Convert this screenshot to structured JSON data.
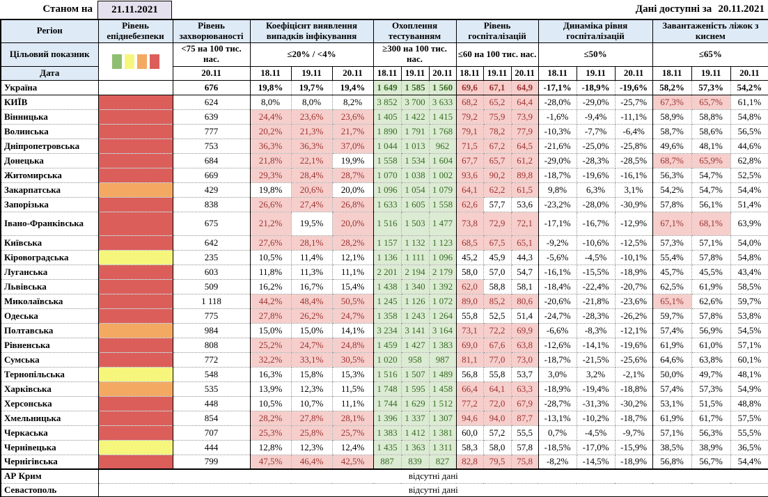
{
  "meta": {
    "as_of_label": "Станом на",
    "as_of_date": "21.11.2021",
    "available_label": "Дані доступні за",
    "available_date": "20.11.2021"
  },
  "colors": {
    "header_blue": "#DEEAF6",
    "date_box_lavender": "#E5E0ED",
    "alert_pink_bg": "#F6CECB",
    "alert_red_text": "#9C3332",
    "ok_green_bg": "#DCEBD3",
    "ok_green_text": "#356B22",
    "danger_red": "#DC5E5A",
    "danger_orange": "#F4A963",
    "danger_yellow": "#F6F67D"
  },
  "header": {
    "region": "Регіон",
    "target_row_label": "Цільовий показник",
    "date_row_label": "Дата",
    "legend_colors": [
      "#8FBE70",
      "#F6F67D",
      "#F4A963",
      "#DC5E5A"
    ],
    "groups": [
      {
        "title": "Рівень епіднебезпеки",
        "target": "",
        "dates": []
      },
      {
        "title": "Рівень захворюваності",
        "target": "<75 на 100 тис. нас.",
        "dates": [
          "20.11"
        ]
      },
      {
        "title": "Коефіцієнт виявлення випадків інфікування",
        "target": "≤20% / <4%",
        "dates": [
          "18.11",
          "19.11",
          "20.11"
        ]
      },
      {
        "title": "Охоплення тестуванням",
        "target": "≥300 на 100 тис. нас.",
        "dates": [
          "18.11",
          "19.11",
          "20.11"
        ]
      },
      {
        "title": "Рівень госпіталізацій",
        "target": "≤60 на 100 тис. нас.",
        "dates": [
          "18.11",
          "19.11",
          "20.11"
        ]
      },
      {
        "title": "Динаміка рівня госпіталізацій",
        "target": "≤50%",
        "dates": [
          "18.11",
          "19.11",
          "20.11"
        ]
      },
      {
        "title": "Завантаженість ліжок з киснем",
        "target": "≤65%",
        "dates": [
          "18.11",
          "19.11",
          "20.11"
        ]
      }
    ]
  },
  "rows": [
    {
      "region": "Україна",
      "danger": "none",
      "bold": true,
      "incidence": "676",
      "det": [
        "19,8%",
        "19,7%",
        "19,4%"
      ],
      "det_a": [
        0,
        0,
        0
      ],
      "test": [
        "1 649",
        "1 585",
        "1 560"
      ],
      "hosp": [
        "69,6",
        "67,1",
        "64,9"
      ],
      "hosp_a": [
        1,
        1,
        1
      ],
      "dyn": [
        "-17,1%",
        "-18,9%",
        "-19,6%"
      ],
      "beds": [
        "58,2%",
        "57,3%",
        "54,2%"
      ],
      "beds_a": [
        0,
        0,
        0
      ]
    },
    {
      "region": "КИЇВ",
      "danger": "red",
      "incidence": "624",
      "det": [
        "8,0%",
        "8,0%",
        "8,2%"
      ],
      "det_a": [
        0,
        0,
        0
      ],
      "test": [
        "3 852",
        "3 700",
        "3 633"
      ],
      "hosp": [
        "68,2",
        "65,2",
        "64,4"
      ],
      "hosp_a": [
        1,
        1,
        1
      ],
      "dyn": [
        "-28,0%",
        "-29,0%",
        "-25,7%"
      ],
      "beds": [
        "67,3%",
        "65,7%",
        "61,1%"
      ],
      "beds_a": [
        1,
        1,
        0
      ]
    },
    {
      "region": "Вінницька",
      "danger": "red",
      "incidence": "639",
      "det": [
        "24,4%",
        "23,6%",
        "23,6%"
      ],
      "det_a": [
        1,
        1,
        1
      ],
      "test": [
        "1 405",
        "1 422",
        "1 415"
      ],
      "hosp": [
        "79,2",
        "75,9",
        "73,9"
      ],
      "hosp_a": [
        1,
        1,
        1
      ],
      "dyn": [
        "-1,6%",
        "-9,4%",
        "-11,1%"
      ],
      "beds": [
        "58,9%",
        "58,8%",
        "54,8%"
      ],
      "beds_a": [
        0,
        0,
        0
      ]
    },
    {
      "region": "Волинська",
      "danger": "red",
      "incidence": "777",
      "det": [
        "20,2%",
        "21,3%",
        "21,7%"
      ],
      "det_a": [
        1,
        1,
        1
      ],
      "test": [
        "1 890",
        "1 791",
        "1 768"
      ],
      "hosp": [
        "79,1",
        "78,2",
        "77,9"
      ],
      "hosp_a": [
        1,
        1,
        1
      ],
      "dyn": [
        "-10,3%",
        "-7,7%",
        "-6,4%"
      ],
      "beds": [
        "58,7%",
        "58,6%",
        "56,5%"
      ],
      "beds_a": [
        0,
        0,
        0
      ]
    },
    {
      "region": "Дніпропетровська",
      "danger": "red",
      "incidence": "753",
      "det": [
        "36,3%",
        "36,3%",
        "37,0%"
      ],
      "det_a": [
        1,
        1,
        1
      ],
      "test": [
        "1 044",
        "1 013",
        "962"
      ],
      "hosp": [
        "71,5",
        "67,2",
        "64,5"
      ],
      "hosp_a": [
        1,
        1,
        1
      ],
      "dyn": [
        "-21,6%",
        "-25,0%",
        "-25,8%"
      ],
      "beds": [
        "49,6%",
        "48,1%",
        "44,6%"
      ],
      "beds_a": [
        0,
        0,
        0
      ]
    },
    {
      "region": "Донецька",
      "danger": "red",
      "incidence": "684",
      "det": [
        "21,8%",
        "22,1%",
        "19,9%"
      ],
      "det_a": [
        1,
        1,
        0
      ],
      "test": [
        "1 558",
        "1 534",
        "1 604"
      ],
      "hosp": [
        "67,7",
        "65,7",
        "61,2"
      ],
      "hosp_a": [
        1,
        1,
        1
      ],
      "dyn": [
        "-29,0%",
        "-28,3%",
        "-28,5%"
      ],
      "beds": [
        "68,7%",
        "65,9%",
        "62,8%"
      ],
      "beds_a": [
        1,
        1,
        0
      ]
    },
    {
      "region": "Житомирська",
      "danger": "red",
      "incidence": "669",
      "det": [
        "29,3%",
        "28,4%",
        "28,7%"
      ],
      "det_a": [
        1,
        1,
        1
      ],
      "test": [
        "1 070",
        "1 038",
        "1 002"
      ],
      "hosp": [
        "93,6",
        "90,2",
        "89,8"
      ],
      "hosp_a": [
        1,
        1,
        1
      ],
      "dyn": [
        "-18,7%",
        "-19,6%",
        "-16,1%"
      ],
      "beds": [
        "56,3%",
        "54,7%",
        "52,5%"
      ],
      "beds_a": [
        0,
        0,
        0
      ]
    },
    {
      "region": "Закарпатська",
      "danger": "orange",
      "incidence": "429",
      "det": [
        "19,8%",
        "20,6%",
        "20,0%"
      ],
      "det_a": [
        0,
        1,
        0
      ],
      "test": [
        "1 096",
        "1 054",
        "1 079"
      ],
      "hosp": [
        "64,1",
        "62,2",
        "61,5"
      ],
      "hosp_a": [
        1,
        1,
        1
      ],
      "dyn": [
        "9,8%",
        "6,3%",
        "3,1%"
      ],
      "beds": [
        "54,2%",
        "54,7%",
        "54,4%"
      ],
      "beds_a": [
        0,
        0,
        0
      ]
    },
    {
      "region": "Запорізька",
      "danger": "red",
      "incidence": "838",
      "det": [
        "26,6%",
        "27,4%",
        "26,8%"
      ],
      "det_a": [
        1,
        1,
        1
      ],
      "test": [
        "1 633",
        "1 605",
        "1 558"
      ],
      "hosp": [
        "62,6",
        "57,7",
        "53,6"
      ],
      "hosp_a": [
        1,
        0,
        0
      ],
      "dyn": [
        "-23,2%",
        "-28,0%",
        "-30,9%"
      ],
      "beds": [
        "57,8%",
        "56,1%",
        "51,4%"
      ],
      "beds_a": [
        0,
        0,
        0
      ]
    },
    {
      "region": "Івано-Франківська",
      "danger": "red",
      "tall": true,
      "incidence": "675",
      "det": [
        "21,2%",
        "19,5%",
        "20,0%"
      ],
      "det_a": [
        1,
        0,
        1
      ],
      "test": [
        "1 516",
        "1 503",
        "1 477"
      ],
      "hosp": [
        "73,8",
        "72,9",
        "72,1"
      ],
      "hosp_a": [
        1,
        1,
        1
      ],
      "dyn": [
        "-17,1%",
        "-16,7%",
        "-12,9%"
      ],
      "beds": [
        "67,1%",
        "68,1%",
        "63,9%"
      ],
      "beds_a": [
        1,
        1,
        0
      ]
    },
    {
      "region": "Київська",
      "danger": "red",
      "incidence": "642",
      "det": [
        "27,6%",
        "28,1%",
        "28,2%"
      ],
      "det_a": [
        1,
        1,
        1
      ],
      "test": [
        "1 157",
        "1 132",
        "1 123"
      ],
      "hosp": [
        "68,5",
        "67,5",
        "65,1"
      ],
      "hosp_a": [
        1,
        1,
        1
      ],
      "dyn": [
        "-9,2%",
        "-10,6%",
        "-12,5%"
      ],
      "beds": [
        "57,3%",
        "57,1%",
        "54,0%"
      ],
      "beds_a": [
        0,
        0,
        0
      ]
    },
    {
      "region": "Кіровоградська",
      "danger": "yellow",
      "incidence": "235",
      "det": [
        "10,5%",
        "11,4%",
        "12,1%"
      ],
      "det_a": [
        0,
        0,
        0
      ],
      "test": [
        "1 136",
        "1 111",
        "1 096"
      ],
      "hosp": [
        "45,2",
        "45,9",
        "44,3"
      ],
      "hosp_a": [
        0,
        0,
        0
      ],
      "dyn": [
        "-5,6%",
        "-4,5%",
        "-10,1%"
      ],
      "beds": [
        "55,4%",
        "57,8%",
        "54,8%"
      ],
      "beds_a": [
        0,
        0,
        0
      ]
    },
    {
      "region": "Луганська",
      "danger": "red",
      "incidence": "603",
      "det": [
        "11,8%",
        "11,3%",
        "11,1%"
      ],
      "det_a": [
        0,
        0,
        0
      ],
      "test": [
        "2 201",
        "2 194",
        "2 179"
      ],
      "hosp": [
        "58,0",
        "57,0",
        "54,7"
      ],
      "hosp_a": [
        0,
        0,
        0
      ],
      "dyn": [
        "-16,1%",
        "-15,5%",
        "-18,9%"
      ],
      "beds": [
        "45,7%",
        "45,5%",
        "43,4%"
      ],
      "beds_a": [
        0,
        0,
        0
      ]
    },
    {
      "region": "Львівська",
      "danger": "red",
      "incidence": "509",
      "det": [
        "16,2%",
        "16,7%",
        "15,4%"
      ],
      "det_a": [
        0,
        0,
        0
      ],
      "test": [
        "1 438",
        "1 340",
        "1 392"
      ],
      "hosp": [
        "62,0",
        "58,8",
        "58,1"
      ],
      "hosp_a": [
        1,
        0,
        0
      ],
      "dyn": [
        "-18,4%",
        "-22,4%",
        "-20,7%"
      ],
      "beds": [
        "62,5%",
        "61,9%",
        "58,5%"
      ],
      "beds_a": [
        0,
        0,
        0
      ]
    },
    {
      "region": "Миколаївська",
      "danger": "red",
      "incidence": "1 118",
      "det": [
        "44,2%",
        "48,4%",
        "50,5%"
      ],
      "det_a": [
        1,
        1,
        1
      ],
      "test": [
        "1 245",
        "1 126",
        "1 072"
      ],
      "hosp": [
        "89,0",
        "85,2",
        "80,6"
      ],
      "hosp_a": [
        1,
        1,
        1
      ],
      "dyn": [
        "-20,6%",
        "-21,8%",
        "-23,6%"
      ],
      "beds": [
        "65,1%",
        "62,6%",
        "59,7%"
      ],
      "beds_a": [
        1,
        0,
        0
      ]
    },
    {
      "region": "Одеська",
      "danger": "red",
      "incidence": "775",
      "det": [
        "27,8%",
        "26,2%",
        "24,7%"
      ],
      "det_a": [
        1,
        1,
        1
      ],
      "test": [
        "1 358",
        "1 243",
        "1 264"
      ],
      "hosp": [
        "55,8",
        "52,5",
        "51,4"
      ],
      "hosp_a": [
        0,
        0,
        0
      ],
      "dyn": [
        "-24,7%",
        "-28,3%",
        "-26,2%"
      ],
      "beds": [
        "59,7%",
        "57,8%",
        "53,8%"
      ],
      "beds_a": [
        0,
        0,
        0
      ]
    },
    {
      "region": "Полтавська",
      "danger": "orange",
      "incidence": "984",
      "det": [
        "15,0%",
        "15,0%",
        "14,1%"
      ],
      "det_a": [
        0,
        0,
        0
      ],
      "test": [
        "3 234",
        "3 141",
        "3 164"
      ],
      "hosp": [
        "73,1",
        "72,2",
        "69,9"
      ],
      "hosp_a": [
        1,
        1,
        1
      ],
      "dyn": [
        "-6,6%",
        "-8,3%",
        "-12,1%"
      ],
      "beds": [
        "57,4%",
        "56,9%",
        "54,5%"
      ],
      "beds_a": [
        0,
        0,
        0
      ]
    },
    {
      "region": "Рівненська",
      "danger": "red",
      "incidence": "808",
      "det": [
        "25,2%",
        "24,7%",
        "24,8%"
      ],
      "det_a": [
        1,
        1,
        1
      ],
      "test": [
        "1 459",
        "1 427",
        "1 383"
      ],
      "hosp": [
        "69,0",
        "67,6",
        "63,8"
      ],
      "hosp_a": [
        1,
        1,
        1
      ],
      "dyn": [
        "-12,6%",
        "-14,1%",
        "-19,6%"
      ],
      "beds": [
        "61,9%",
        "61,0%",
        "57,1%"
      ],
      "beds_a": [
        0,
        0,
        0
      ]
    },
    {
      "region": "Сумська",
      "danger": "red",
      "incidence": "772",
      "det": [
        "32,2%",
        "33,1%",
        "30,5%"
      ],
      "det_a": [
        1,
        1,
        1
      ],
      "test": [
        "1 020",
        "958",
        "987"
      ],
      "hosp": [
        "81,1",
        "77,0",
        "73,0"
      ],
      "hosp_a": [
        1,
        1,
        1
      ],
      "dyn": [
        "-18,7%",
        "-21,5%",
        "-25,6%"
      ],
      "beds": [
        "64,6%",
        "63,8%",
        "60,1%"
      ],
      "beds_a": [
        0,
        0,
        0
      ]
    },
    {
      "region": "Тернопільська",
      "danger": "yellow",
      "incidence": "548",
      "det": [
        "16,3%",
        "15,8%",
        "15,3%"
      ],
      "det_a": [
        0,
        0,
        0
      ],
      "test": [
        "1 516",
        "1 507",
        "1 489"
      ],
      "hosp": [
        "56,8",
        "55,8",
        "53,7"
      ],
      "hosp_a": [
        0,
        0,
        0
      ],
      "dyn": [
        "3,0%",
        "3,2%",
        "-2,1%"
      ],
      "beds": [
        "50,0%",
        "49,7%",
        "48,1%"
      ],
      "beds_a": [
        0,
        0,
        0
      ]
    },
    {
      "region": "Харківська",
      "danger": "orange",
      "incidence": "535",
      "det": [
        "13,9%",
        "12,3%",
        "11,5%"
      ],
      "det_a": [
        0,
        0,
        0
      ],
      "test": [
        "1 748",
        "1 595",
        "1 458"
      ],
      "hosp": [
        "66,4",
        "64,1",
        "63,3"
      ],
      "hosp_a": [
        1,
        1,
        1
      ],
      "dyn": [
        "-18,9%",
        "-19,4%",
        "-18,8%"
      ],
      "beds": [
        "57,4%",
        "57,3%",
        "54,9%"
      ],
      "beds_a": [
        0,
        0,
        0
      ]
    },
    {
      "region": "Херсонська",
      "danger": "red",
      "incidence": "448",
      "det": [
        "10,5%",
        "10,7%",
        "11,1%"
      ],
      "det_a": [
        0,
        0,
        0
      ],
      "test": [
        "1 744",
        "1 629",
        "1 512"
      ],
      "hosp": [
        "77,2",
        "72,0",
        "67,9"
      ],
      "hosp_a": [
        1,
        1,
        1
      ],
      "dyn": [
        "-28,7%",
        "-31,3%",
        "-30,2%"
      ],
      "beds": [
        "53,1%",
        "51,5%",
        "48,8%"
      ],
      "beds_a": [
        0,
        0,
        0
      ]
    },
    {
      "region": "Хмельницька",
      "danger": "red",
      "incidence": "854",
      "det": [
        "28,2%",
        "27,8%",
        "28,1%"
      ],
      "det_a": [
        1,
        1,
        1
      ],
      "test": [
        "1 396",
        "1 337",
        "1 307"
      ],
      "hosp": [
        "94,6",
        "94,0",
        "87,7"
      ],
      "hosp_a": [
        1,
        1,
        1
      ],
      "dyn": [
        "-13,1%",
        "-10,2%",
        "-18,7%"
      ],
      "beds": [
        "61,9%",
        "61,7%",
        "57,5%"
      ],
      "beds_a": [
        0,
        0,
        0
      ]
    },
    {
      "region": "Черкаська",
      "danger": "red",
      "incidence": "707",
      "det": [
        "25,3%",
        "25,8%",
        "25,7%"
      ],
      "det_a": [
        1,
        1,
        1
      ],
      "test": [
        "1 383",
        "1 412",
        "1 381"
      ],
      "hosp": [
        "60,0",
        "57,2",
        "55,5"
      ],
      "hosp_a": [
        0,
        0,
        0
      ],
      "dyn": [
        "0,7%",
        "-4,5%",
        "-9,7%"
      ],
      "beds": [
        "57,1%",
        "56,3%",
        "55,5%"
      ],
      "beds_a": [
        0,
        0,
        0
      ]
    },
    {
      "region": "Чернівецька",
      "danger": "yellow",
      "incidence": "444",
      "det": [
        "12,8%",
        "12,3%",
        "12,4%"
      ],
      "det_a": [
        0,
        0,
        0
      ],
      "test": [
        "1 435",
        "1 363",
        "1 311"
      ],
      "hosp": [
        "58,3",
        "58,0",
        "57,8"
      ],
      "hosp_a": [
        0,
        0,
        0
      ],
      "dyn": [
        "-18,5%",
        "-17,0%",
        "-15,9%"
      ],
      "beds": [
        "38,5%",
        "38,9%",
        "36,5%"
      ],
      "beds_a": [
        0,
        0,
        0
      ]
    },
    {
      "region": "Чернігівська",
      "danger": "red",
      "incidence": "799",
      "det": [
        "47,5%",
        "46,4%",
        "42,5%"
      ],
      "det_a": [
        1,
        1,
        1
      ],
      "test": [
        "887",
        "839",
        "827"
      ],
      "hosp": [
        "82,8",
        "79,5",
        "75,8"
      ],
      "hosp_a": [
        1,
        1,
        1
      ],
      "dyn": [
        "-8,2%",
        "-14,5%",
        "-18,9%"
      ],
      "beds": [
        "56,8%",
        "56,7%",
        "54,4%"
      ],
      "beds_a": [
        0,
        0,
        0
      ]
    }
  ],
  "no_data_rows": [
    {
      "region": "АР Крим",
      "text": "відсутні дані"
    },
    {
      "region": "Севастополь",
      "text": "відсутні дані"
    }
  ]
}
